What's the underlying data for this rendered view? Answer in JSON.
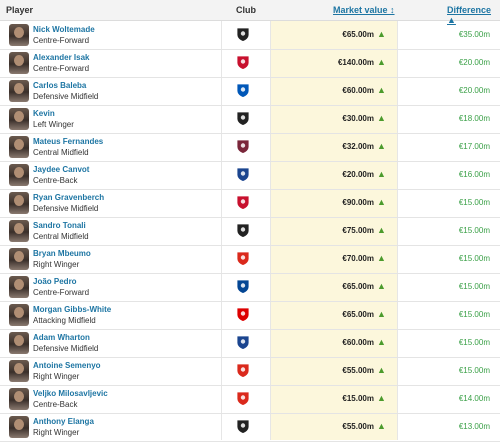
{
  "header": {
    "player": "Player",
    "club": "Club",
    "market_value": "Market value ↕",
    "difference": "Difference ▲"
  },
  "rows": [
    {
      "name": "Nick Woltemade",
      "position": "Centre-Forward",
      "club_icon": "newcastle-crest-icon",
      "club_color": "#222222",
      "market_value": "€65.00m",
      "difference": "€35.00m"
    },
    {
      "name": "Alexander Isak",
      "position": "Centre-Forward",
      "club_icon": "liverpool-crest-icon",
      "club_color": "#c8102e",
      "market_value": "€140.00m",
      "difference": "€20.00m"
    },
    {
      "name": "Carlos Baleba",
      "position": "Defensive Midfield",
      "club_icon": "brighton-crest-icon",
      "club_color": "#0057b8",
      "market_value": "€60.00m",
      "difference": "€20.00m"
    },
    {
      "name": "Kevin",
      "position": "Left Winger",
      "club_icon": "fulham-crest-icon",
      "club_color": "#222222",
      "market_value": "€30.00m",
      "difference": "€18.00m"
    },
    {
      "name": "Mateus Fernandes",
      "position": "Central Midfield",
      "club_icon": "west-ham-crest-icon",
      "club_color": "#7a263a",
      "market_value": "€32.00m",
      "difference": "€17.00m"
    },
    {
      "name": "Jaydee Canvot",
      "position": "Centre-Back",
      "club_icon": "crystal-palace-crest-icon",
      "club_color": "#1b458f",
      "market_value": "€20.00m",
      "difference": "€16.00m"
    },
    {
      "name": "Ryan Gravenberch",
      "position": "Defensive Midfield",
      "club_icon": "liverpool-crest-icon",
      "club_color": "#c8102e",
      "market_value": "€90.00m",
      "difference": "€15.00m"
    },
    {
      "name": "Sandro Tonali",
      "position": "Central Midfield",
      "club_icon": "newcastle-crest-icon",
      "club_color": "#222222",
      "market_value": "€75.00m",
      "difference": "€15.00m"
    },
    {
      "name": "Bryan Mbeumo",
      "position": "Right Winger",
      "club_icon": "manchester-united-crest-icon",
      "club_color": "#da291c",
      "market_value": "€70.00m",
      "difference": "€15.00m"
    },
    {
      "name": "João Pedro",
      "position": "Centre-Forward",
      "club_icon": "chelsea-crest-icon",
      "club_color": "#034694",
      "market_value": "€65.00m",
      "difference": "€15.00m"
    },
    {
      "name": "Morgan Gibbs-White",
      "position": "Attacking Midfield",
      "club_icon": "nottingham-forest-crest-icon",
      "club_color": "#dd0000",
      "market_value": "€65.00m",
      "difference": "€15.00m"
    },
    {
      "name": "Adam Wharton",
      "position": "Defensive Midfield",
      "club_icon": "crystal-palace-crest-icon",
      "club_color": "#1b458f",
      "market_value": "€60.00m",
      "difference": "€15.00m"
    },
    {
      "name": "Antoine Semenyo",
      "position": "Right Winger",
      "club_icon": "bournemouth-crest-icon",
      "club_color": "#da291c",
      "market_value": "€55.00m",
      "difference": "€15.00m"
    },
    {
      "name": "Veljko Milosavljevic",
      "position": "Centre-Back",
      "club_icon": "bournemouth-crest-icon",
      "club_color": "#da291c",
      "market_value": "€15.00m",
      "difference": "€14.00m"
    },
    {
      "name": "Anthony Elanga",
      "position": "Right Winger",
      "club_icon": "newcastle-crest-icon",
      "club_color": "#222222",
      "market_value": "€55.00m",
      "difference": "€13.00m"
    }
  ],
  "trend_icon": "up-arrow-icon",
  "colors": {
    "link": "#1d75a3",
    "positive": "#3aa047",
    "market_value_column": "#fcf7dc"
  }
}
